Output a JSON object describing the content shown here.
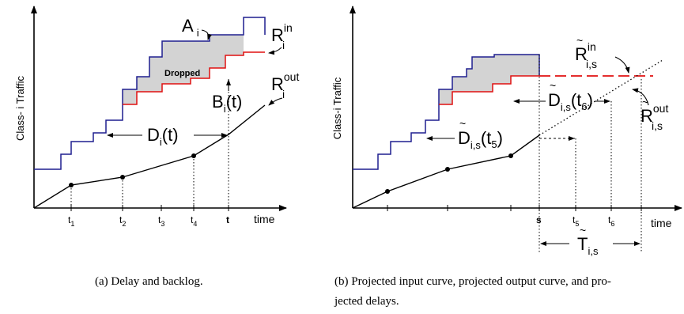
{
  "panel_a": {
    "y_axis_label": "Class- i Traffic",
    "x_axis_label": "time",
    "ticks": [
      {
        "base": "t",
        "sub": "1"
      },
      {
        "base": "t",
        "sub": "2"
      },
      {
        "base": "t",
        "sub": "3"
      },
      {
        "base": "t",
        "sub": "4"
      },
      {
        "base": "t",
        "sub": ""
      }
    ],
    "label_A": {
      "base": "A",
      "sub": "i"
    },
    "label_R_in": {
      "base": "R",
      "sup": "in",
      "sub": "i"
    },
    "label_R_out": {
      "base": "R",
      "sup": "out",
      "sub": "i"
    },
    "dropped": "Dropped",
    "label_B": {
      "base": "B",
      "sub": "i",
      "arg": "(t)"
    },
    "label_D": {
      "base": "D",
      "sub": "i",
      "arg": "(t)"
    },
    "caption": "(a) Delay and backlog."
  },
  "panel_b": {
    "y_axis_label": "Class-i Traffic",
    "x_axis_label": "time",
    "ticks": [
      {
        "base": "s",
        "sub": ""
      },
      {
        "base": "t",
        "sub": "5"
      },
      {
        "base": "t",
        "sub": "6"
      }
    ],
    "label_R_in": {
      "base": "R",
      "sup": "in",
      "sub": "i,s"
    },
    "label_R_out": {
      "base": "R",
      "sup": "out",
      "sub": "i,s"
    },
    "label_D6": {
      "base": "D",
      "sub": "i,s",
      "arg": "(t",
      "argsub": "6",
      "close": ")"
    },
    "label_D5": {
      "base": "D",
      "sub": "i,s",
      "arg": "(t",
      "argsub": "5",
      "close": ")"
    },
    "label_T": {
      "base": "T",
      "sub": "i,s"
    },
    "caption_line1": "(b) Projected input curve, projected output curve, and pro-",
    "caption_line2": "jected delays."
  },
  "colors": {
    "input_curve": "#1f1f8f",
    "output_curve": "#e01010",
    "backlog_fill": "#d3d3d3",
    "line": "#000000"
  }
}
